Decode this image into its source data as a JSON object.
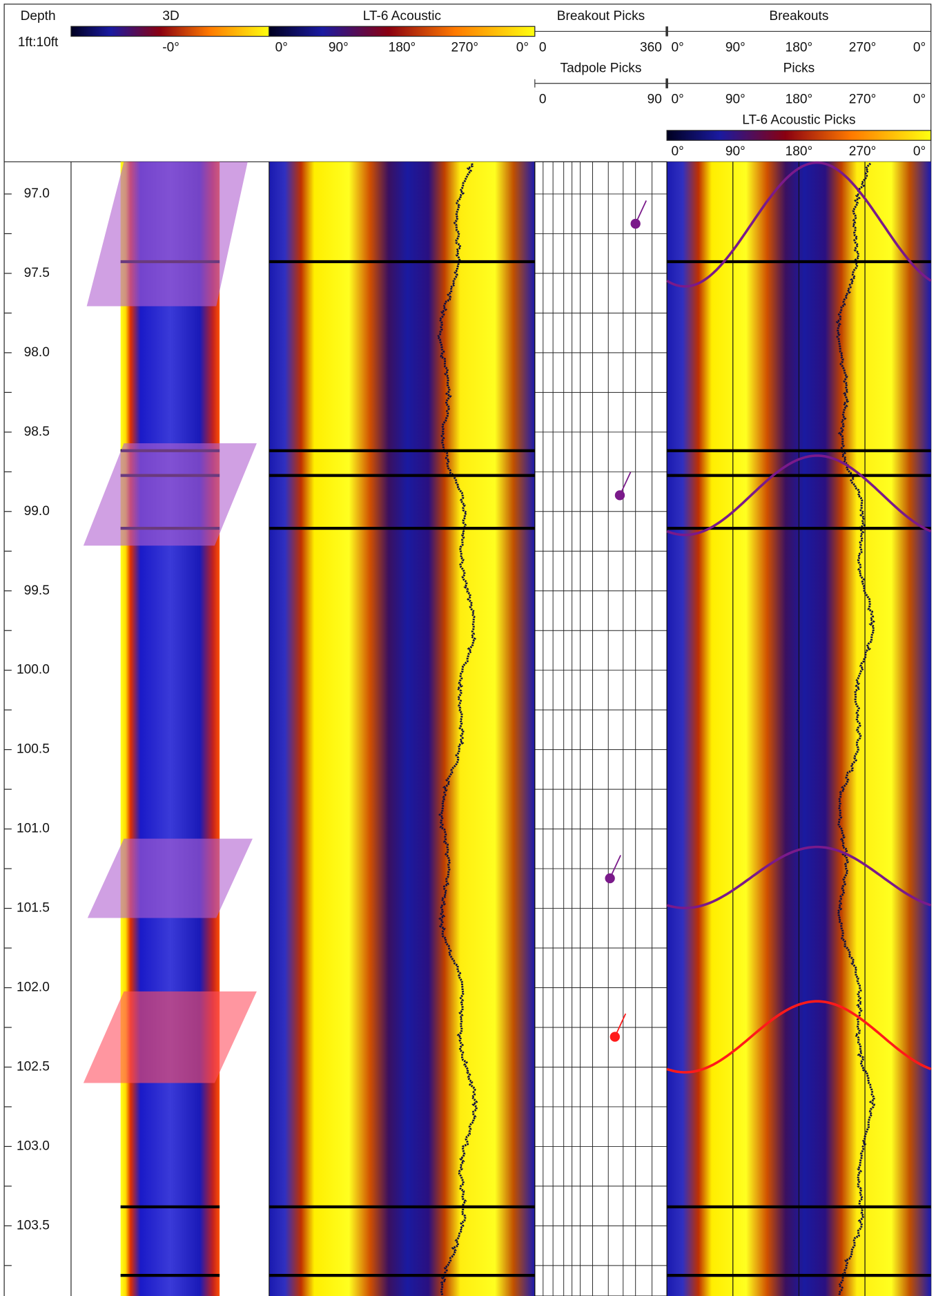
{
  "header": {
    "depth": {
      "title": "Depth",
      "scale": "1ft:10ft"
    },
    "track_3d": {
      "title": "3D",
      "tick": "-0°"
    },
    "acoustic": {
      "title": "LT-6 Acoustic",
      "ticks": [
        "0°",
        "90°",
        "180°",
        "270°",
        "0°"
      ]
    },
    "breakout_picks": {
      "title": "Breakout Picks",
      "min": "0",
      "max": "360"
    },
    "tadpole_picks": {
      "title": "Tadpole Picks",
      "min": "0",
      "max": "90"
    },
    "breakouts": {
      "title": "Breakouts",
      "ticks": [
        "0°",
        "90°",
        "180°",
        "270°",
        "0°"
      ]
    },
    "picks": {
      "title": "Picks",
      "ticks": [
        "0°",
        "90°",
        "180°",
        "270°",
        "0°"
      ]
    },
    "acoustic_picks": {
      "title": "LT-6 Acoustic Picks",
      "ticks": [
        "0°",
        "90°",
        "180°",
        "270°",
        "0°"
      ]
    }
  },
  "depth_ticks": [
    {
      "value": 97,
      "label": "97.0"
    },
    {
      "value": 97.5,
      "label": "97.5"
    },
    {
      "value": 98,
      "label": "98.0"
    },
    {
      "value": 98.5,
      "label": "98.5"
    },
    {
      "value": 99,
      "label": "99.0"
    },
    {
      "value": 99.5,
      "label": "99.5"
    },
    {
      "value": 100,
      "label": "100.0"
    },
    {
      "value": 100.5,
      "label": "100.5"
    },
    {
      "value": 101,
      "label": "101.0"
    },
    {
      "value": 101.5,
      "label": "101.5"
    },
    {
      "value": 102,
      "label": "102.0"
    },
    {
      "value": 102.5,
      "label": "102.5"
    },
    {
      "value": 103,
      "label": "103.0"
    },
    {
      "value": 103.5,
      "label": "103.5"
    }
  ]
}
